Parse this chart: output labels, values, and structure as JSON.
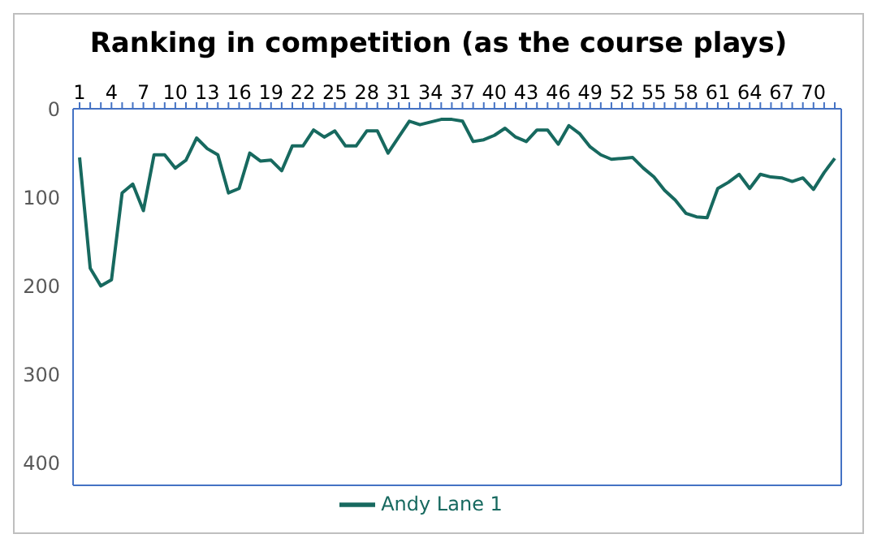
{
  "chart_data": {
    "type": "line",
    "title": "Ranking in competition (as the course plays)",
    "categories": [
      "1",
      null,
      null,
      "4",
      null,
      null,
      "7",
      null,
      null,
      "10",
      null,
      null,
      "13",
      null,
      null,
      "16",
      null,
      null,
      "19",
      null,
      null,
      "22",
      null,
      null,
      "25",
      null,
      null,
      "28",
      null,
      null,
      "31",
      null,
      null,
      "34",
      null,
      null,
      "37",
      null,
      null,
      "40",
      null,
      null,
      "43",
      null,
      null,
      "46",
      null,
      null,
      "49",
      null,
      null,
      "52",
      null,
      null,
      "55",
      null,
      null,
      "58",
      null,
      null,
      "61",
      null,
      null,
      "64",
      null,
      null,
      "67",
      null,
      null,
      "70",
      null,
      null
    ],
    "series": [
      {
        "name": "Andy Lane 1",
        "color": "#17695f",
        "values": [
          55,
          180,
          200,
          193,
          95,
          85,
          115,
          52,
          52,
          67,
          58,
          33,
          45,
          52,
          95,
          90,
          50,
          59,
          58,
          70,
          42,
          42,
          24,
          32,
          25,
          42,
          42,
          25,
          25,
          50,
          32,
          14,
          18,
          15,
          12,
          12,
          14,
          37,
          35,
          30,
          22,
          32,
          37,
          24,
          24,
          40,
          19,
          28,
          43,
          52,
          57,
          56,
          55,
          67,
          77,
          92,
          103,
          118,
          122,
          123,
          90,
          83,
          74,
          90,
          74,
          77,
          78,
          82,
          78,
          91,
          72,
          56
        ]
      }
    ],
    "ylim": [
      425,
      0
    ],
    "yticks": [
      0,
      100,
      200,
      300,
      400
    ],
    "grid": false,
    "legend": "bottom",
    "marker": "none",
    "line_style": "solid"
  }
}
